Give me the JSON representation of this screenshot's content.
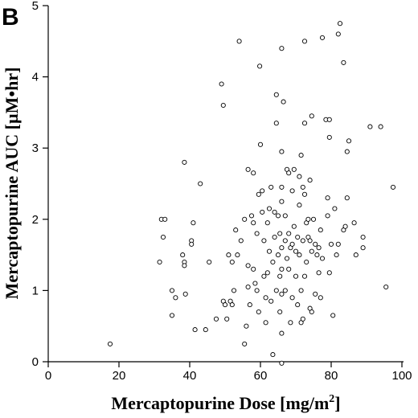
{
  "chart_data": {
    "type": "scatter",
    "panel_label": "B",
    "xlabel": "Mercaptopurine Dose [mg/m",
    "xlabel_sup": "2",
    "xlabel_end": "]",
    "ylabel": "Mercaptopurine AUC [µM•hr]",
    "xlim": [
      0,
      100
    ],
    "ylim": [
      0,
      5
    ],
    "xticks": [
      "0",
      "20",
      "40",
      "60",
      "80",
      "100"
    ],
    "yticks": [
      "0",
      "1",
      "2",
      "3",
      "4",
      "5"
    ],
    "grid": false,
    "legend": false,
    "points": [
      [
        17.5,
        0.25
      ],
      [
        31.5,
        1.4
      ],
      [
        32.0,
        2.0
      ],
      [
        32.5,
        1.75
      ],
      [
        33.0,
        2.0
      ],
      [
        35.0,
        1.0
      ],
      [
        35.0,
        0.65
      ],
      [
        36.0,
        0.9
      ],
      [
        38.0,
        1.5
      ],
      [
        38.5,
        1.4
      ],
      [
        38.5,
        1.35
      ],
      [
        38.5,
        2.8
      ],
      [
        38.8,
        0.95
      ],
      [
        40.5,
        1.7
      ],
      [
        40.5,
        1.65
      ],
      [
        41.0,
        1.95
      ],
      [
        41.5,
        0.45
      ],
      [
        43.0,
        2.5
      ],
      [
        44.5,
        0.45
      ],
      [
        45.5,
        1.4
      ],
      [
        47.5,
        0.6
      ],
      [
        49.5,
        0.85
      ],
      [
        49.0,
        3.9
      ],
      [
        49.5,
        3.6
      ],
      [
        50.0,
        0.8
      ],
      [
        50.5,
        0.6
      ],
      [
        51.0,
        1.5
      ],
      [
        51.5,
        0.85
      ],
      [
        52.0,
        1.4
      ],
      [
        52.0,
        0.8
      ],
      [
        52.5,
        1.0
      ],
      [
        53.0,
        1.85
      ],
      [
        53.5,
        1.5
      ],
      [
        54.0,
        4.5
      ],
      [
        54.5,
        1.7
      ],
      [
        55.5,
        2.0
      ],
      [
        55.5,
        0.25
      ],
      [
        56.0,
        0.5
      ],
      [
        56.5,
        1.35
      ],
      [
        56.5,
        1.05
      ],
      [
        56.5,
        2.7
      ],
      [
        57.0,
        0.8
      ],
      [
        57.5,
        2.05
      ],
      [
        58.0,
        1.95
      ],
      [
        58.0,
        2.65
      ],
      [
        58.0,
        1.3
      ],
      [
        58.5,
        1.1
      ],
      [
        59.0,
        1.0
      ],
      [
        59.0,
        1.8
      ],
      [
        59.5,
        2.35
      ],
      [
        59.5,
        0.7
      ],
      [
        59.8,
        4.15
      ],
      [
        60.0,
        3.05
      ],
      [
        60.5,
        2.4
      ],
      [
        60.5,
        2.1
      ],
      [
        61.0,
        1.7
      ],
      [
        61.0,
        1.2
      ],
      [
        61.5,
        0.9
      ],
      [
        61.5,
        0.55
      ],
      [
        62.0,
        1.95
      ],
      [
        62.0,
        1.25
      ],
      [
        62.5,
        2.15
      ],
      [
        62.5,
        1.55
      ],
      [
        63.0,
        2.45
      ],
      [
        63.0,
        0.85
      ],
      [
        63.5,
        1.4
      ],
      [
        63.5,
        0.1
      ],
      [
        64.0,
        2.1
      ],
      [
        64.0,
        1.75
      ],
      [
        64.5,
        3.75
      ],
      [
        64.5,
        3.35
      ],
      [
        64.5,
        1.0
      ],
      [
        65.0,
        2.05
      ],
      [
        65.0,
        1.5
      ],
      [
        65.5,
        1.8
      ],
      [
        65.5,
        1.2
      ],
      [
        65.5,
        0.7
      ],
      [
        66.0,
        4.4
      ],
      [
        66.0,
        2.95
      ],
      [
        66.0,
        2.45
      ],
      [
        66.0,
        2.25
      ],
      [
        66.0,
        1.6
      ],
      [
        66.0,
        1.3
      ],
      [
        66.0,
        0.95
      ],
      [
        66.0,
        0.4
      ],
      [
        66.0,
        -0.02
      ],
      [
        66.5,
        3.65
      ],
      [
        67.0,
        2.05
      ],
      [
        67.0,
        1.7
      ],
      [
        67.0,
        1.0
      ],
      [
        67.5,
        2.7
      ],
      [
        67.5,
        1.45
      ],
      [
        68.0,
        2.65
      ],
      [
        68.0,
        1.8
      ],
      [
        68.0,
        1.3
      ],
      [
        68.5,
        1.6
      ],
      [
        68.5,
        0.55
      ],
      [
        69.0,
        2.4
      ],
      [
        69.0,
        1.65
      ],
      [
        69.0,
        0.9
      ],
      [
        69.5,
        2.7
      ],
      [
        69.5,
        1.9
      ],
      [
        70.0,
        1.55
      ],
      [
        70.0,
        1.2
      ],
      [
        70.5,
        1.75
      ],
      [
        70.5,
        0.8
      ],
      [
        71.0,
        2.6
      ],
      [
        71.0,
        2.2
      ],
      [
        71.0,
        1.5
      ],
      [
        71.5,
        2.9
      ],
      [
        71.5,
        1.0
      ],
      [
        71.5,
        0.55
      ],
      [
        72.0,
        2.45
      ],
      [
        72.0,
        1.7
      ],
      [
        72.0,
        0.6
      ],
      [
        72.5,
        4.5
      ],
      [
        72.5,
        3.35
      ],
      [
        72.5,
        2.35
      ],
      [
        72.5,
        1.2
      ],
      [
        73.0,
        1.95
      ],
      [
        73.0,
        1.4
      ],
      [
        73.5,
        2.0
      ],
      [
        73.5,
        1.75
      ],
      [
        74.0,
        2.55
      ],
      [
        74.0,
        1.7
      ],
      [
        74.0,
        0.75
      ],
      [
        74.5,
        3.45
      ],
      [
        74.5,
        1.55
      ],
      [
        74.5,
        0.7
      ],
      [
        75.0,
        2.0
      ],
      [
        75.5,
        1.65
      ],
      [
        75.5,
        0.95
      ],
      [
        76.0,
        1.5
      ],
      [
        76.5,
        1.6
      ],
      [
        76.5,
        1.25
      ],
      [
        77.0,
        1.85
      ],
      [
        77.0,
        0.9
      ],
      [
        77.5,
        4.55
      ],
      [
        77.5,
        1.45
      ],
      [
        78.5,
        3.4
      ],
      [
        79.0,
        2.3
      ],
      [
        79.0,
        2.05
      ],
      [
        79.5,
        3.15
      ],
      [
        79.5,
        3.4
      ],
      [
        79.5,
        1.25
      ],
      [
        80.0,
        1.65
      ],
      [
        80.5,
        0.65
      ],
      [
        81.0,
        2.15
      ],
      [
        81.5,
        1.5
      ],
      [
        82.0,
        4.6
      ],
      [
        82.0,
        1.65
      ],
      [
        82.5,
        4.75
      ],
      [
        83.5,
        4.2
      ],
      [
        83.5,
        1.85
      ],
      [
        84.0,
        1.9
      ],
      [
        84.5,
        2.3
      ],
      [
        84.5,
        2.95
      ],
      [
        85.0,
        3.1
      ],
      [
        86.5,
        1.95
      ],
      [
        87.0,
        1.5
      ],
      [
        89.0,
        1.75
      ],
      [
        89.0,
        1.6
      ],
      [
        91.0,
        3.3
      ],
      [
        94.0,
        3.3
      ],
      [
        95.5,
        1.05
      ],
      [
        97.5,
        2.45
      ]
    ]
  }
}
